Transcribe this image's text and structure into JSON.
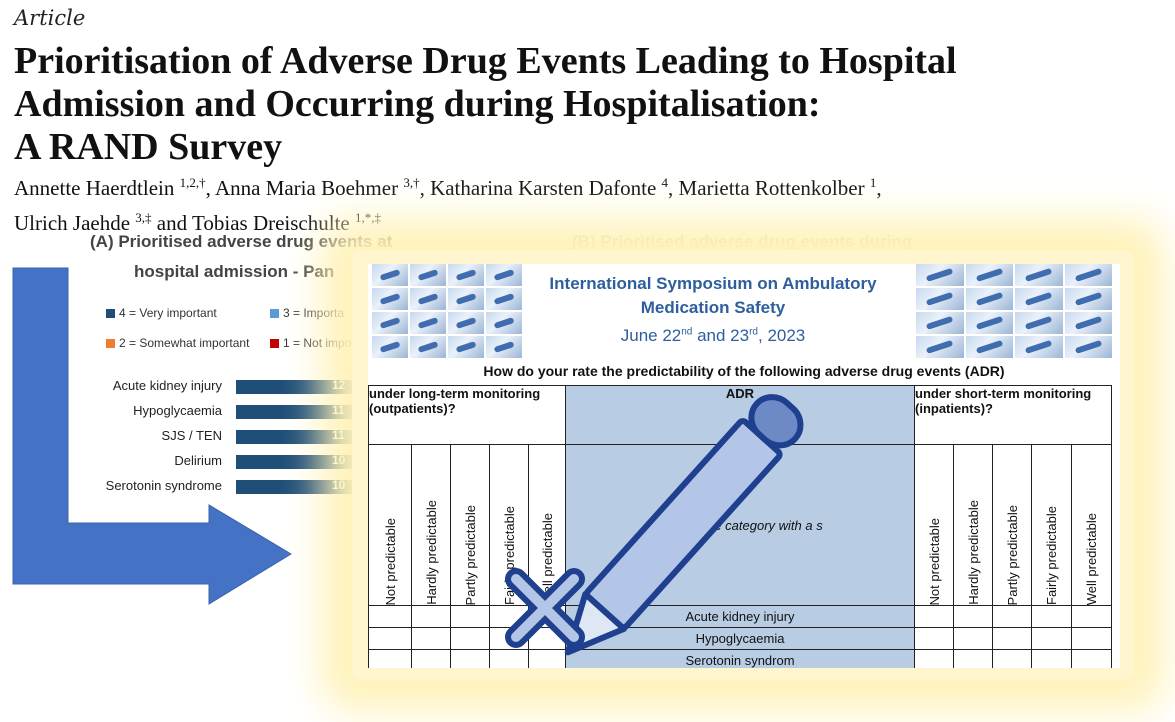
{
  "article": {
    "kicker": "Article",
    "title_lines": [
      "Prioritisation of Adverse Drug Events Leading to Hospital",
      "Admission and Occurring during Hospitalisation:",
      "A RAND Survey"
    ],
    "authors": [
      {
        "name": "Annette Haerdtlein",
        "sup": "1,2,†"
      },
      {
        "name": "Anna Maria Boehmer",
        "sup": "3,†"
      },
      {
        "name": "Katharina Karsten Dafonte",
        "sup": "4"
      },
      {
        "name": "Marietta Rottenkolber",
        "sup": "1"
      },
      {
        "name": "Ulrich Jaehde",
        "sup": "3,‡"
      },
      {
        "name": "Tobias Dreischulte",
        "sup": "1,*,‡"
      }
    ],
    "authors_sep": ", ",
    "authors_and": " and "
  },
  "chart_a": {
    "title_line1": "(A) Prioritised adverse drug events at",
    "title_line2": "hospital admission - Pan",
    "legend": [
      {
        "label": "4 = Very important",
        "color": "#1f4e79"
      },
      {
        "label": "3 = Importa",
        "color": "#5b9bd5"
      },
      {
        "label": "2 = Somewhat important",
        "color": "#ed7d31"
      },
      {
        "label": "1 = Not impo",
        "color": "#c00000"
      }
    ]
  },
  "chart_data": {
    "type": "bar",
    "categories": [
      "Acute kidney injury",
      "Hypoglycaemia",
      "SJS / TEN",
      "Delirium",
      "Serotonin syndrome"
    ],
    "series": [
      {
        "name": "4 = Very important",
        "values": [
          12,
          11,
          11,
          10,
          10
        ]
      }
    ],
    "value_labels": [
      "12",
      "11",
      "11",
      "10",
      "10"
    ]
  },
  "chart_b": {
    "title": "(B) Prioritised adverse drug events during"
  },
  "survey": {
    "symposium_title_lines": [
      "International Symposium on Ambulatory",
      "Medication Safety"
    ],
    "date_parts": {
      "a": "June 22",
      "a_sup": "nd",
      "mid": " and 23",
      "b_sup": "rd",
      "end": ", 2023"
    },
    "question": "How do your rate the predictability of the following adverse drug events (ADR)",
    "left_header": "under long-term monitoring (outpatients)?",
    "adr_header": "ADR",
    "right_header": "under short-term monitoring (inpatients)?",
    "rating_labels": [
      "Not predictable",
      "Hardly predictable",
      "Partly predictable",
      "Fairly predictable",
      "Well predictable"
    ],
    "instruction": "Please in                      e category with a                    s",
    "rows": [
      "Acute kidney injury",
      "Hypoglycaemia",
      "Serotonin syndrom"
    ]
  },
  "icons": {
    "arrow": "arrow-right-icon",
    "pencil": "pencil-icon",
    "cross": "close-icon"
  },
  "colors": {
    "arrow_blue": "#4472c4",
    "pencil_stroke": "#1f3f8f",
    "pencil_fill": "#b3c6e7",
    "symposium_blue": "#2e5e9e",
    "adr_column": "#b8cce4",
    "bar_dark": "#1f4e79"
  }
}
